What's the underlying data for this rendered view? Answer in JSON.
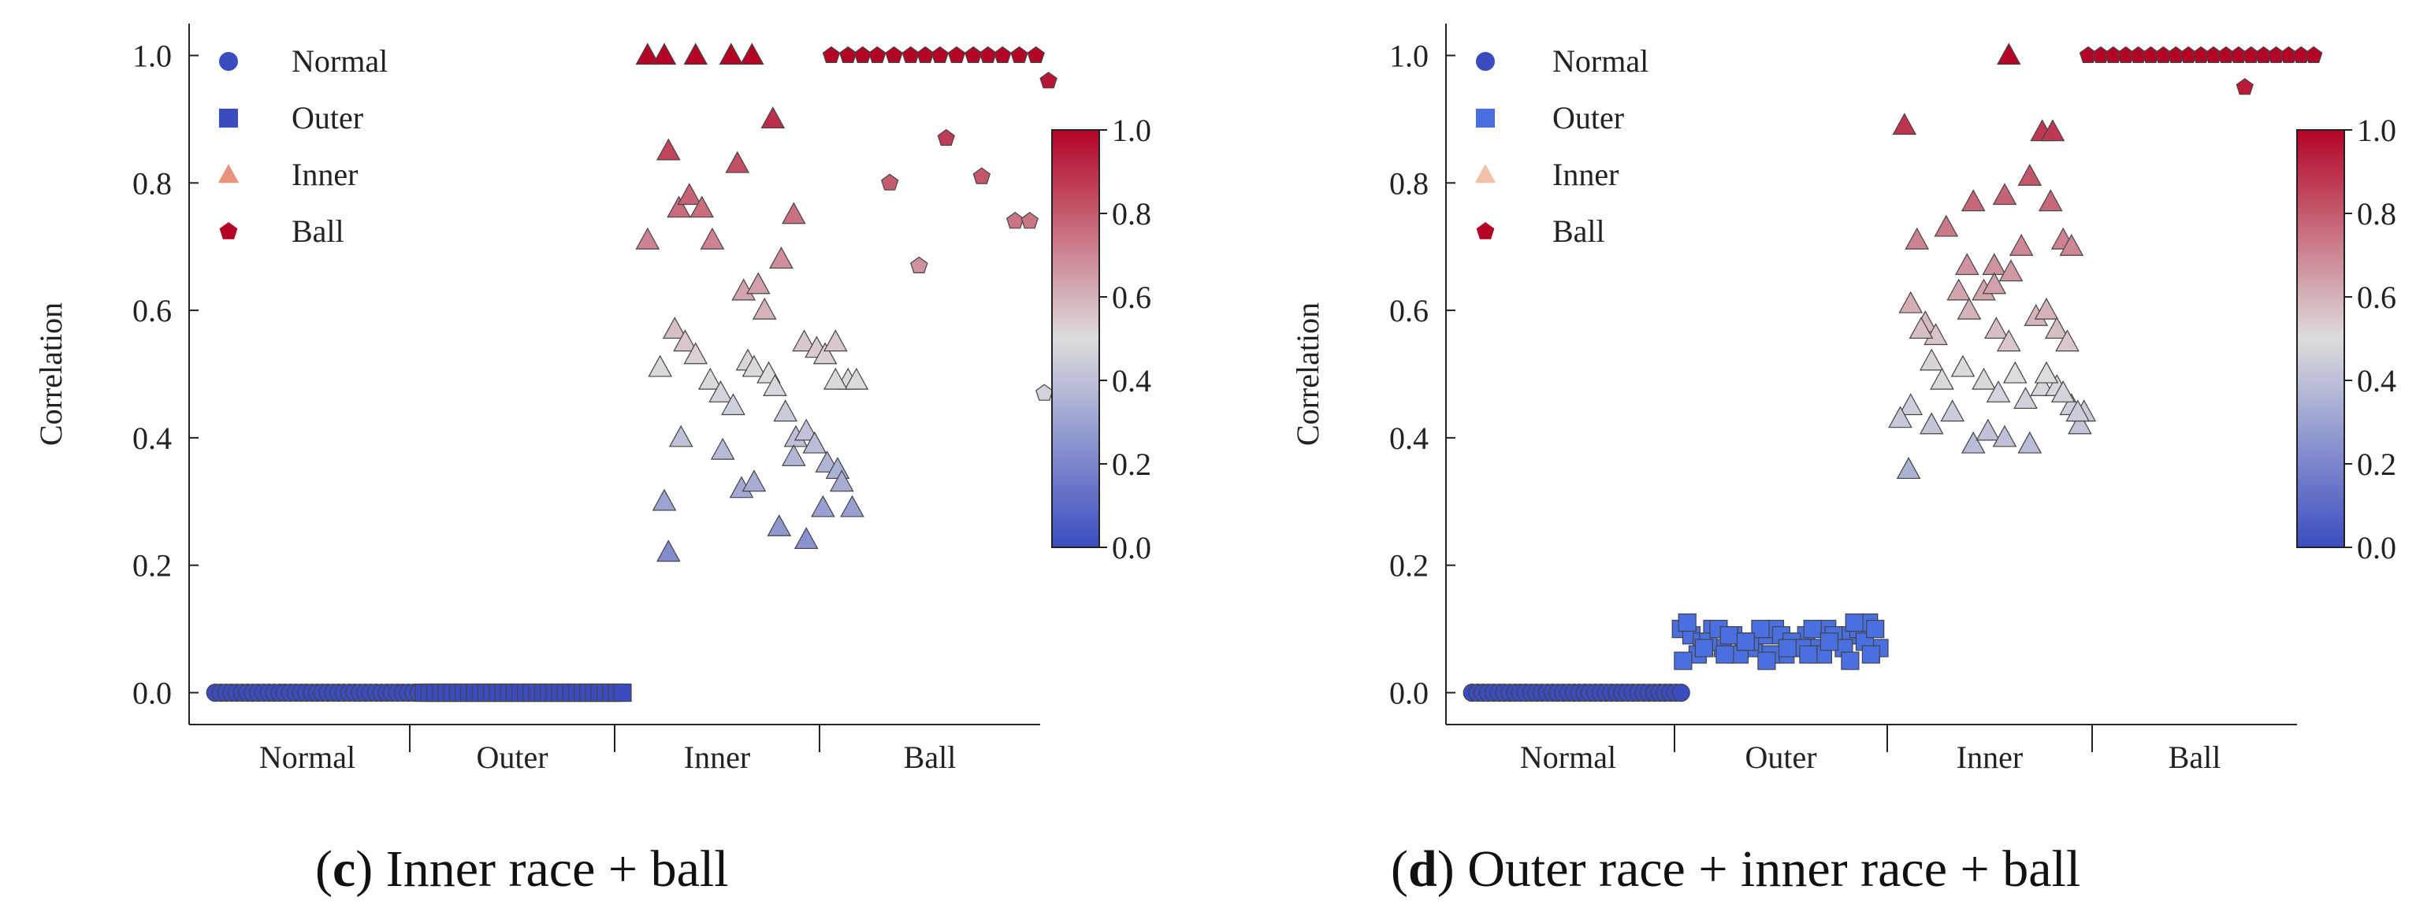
{
  "colorscale": {
    "low": "#3b4cc0",
    "mid": "#dddddd",
    "high": "#b40426"
  },
  "series_colors": {
    "Normal": "#3b4cc0",
    "Outer": "#3b4cc0",
    "Inner": "#e8937a",
    "Ball": "#b40426"
  },
  "chart_data": [
    {
      "panel": "c",
      "type": "scatter",
      "caption": {
        "letter": "c",
        "open": "(",
        "close": ")",
        "rest": " Inner race + ball"
      },
      "ylabel": "Correlation",
      "ylim": [
        -0.05,
        1.05
      ],
      "yticks": [
        0.0,
        0.2,
        0.4,
        0.6,
        0.8,
        1.0
      ],
      "ytick_labels": [
        "0.0",
        "0.2",
        "0.4",
        "0.6",
        "0.8",
        "1.0"
      ],
      "groups": [
        "Normal",
        "Outer",
        "Inner",
        "Ball"
      ],
      "legend": [
        "Normal",
        "Outer",
        "Inner",
        "Ball"
      ],
      "colorbar": {
        "ticks": [
          "0.0",
          "0.2",
          "0.4",
          "0.6",
          "0.8",
          "1.0"
        ]
      },
      "series": [
        {
          "name": "Normal",
          "marker": "circle",
          "x_range": [
            0.05,
            1.05
          ],
          "constant": 0.0,
          "count": 40
        },
        {
          "name": "Outer",
          "marker": "square",
          "x_range": [
            1.05,
            2.0
          ],
          "constant": 0.0,
          "count": 36
        },
        {
          "name": "Inner",
          "marker": "triangle",
          "x": [
            2.12,
            2.2,
            2.35,
            2.52,
            2.62,
            2.22,
            2.27,
            2.32,
            2.38,
            2.43,
            2.55,
            2.58,
            2.65,
            2.68,
            2.72,
            2.76,
            2.82,
            2.87,
            2.93,
            2.97,
            3.02,
            3.08,
            3.12,
            2.18,
            2.25,
            2.3,
            2.35,
            2.42,
            2.47,
            2.53,
            2.6,
            2.63,
            2.7,
            2.73,
            2.78,
            2.83,
            2.88,
            2.92,
            2.98,
            3.03,
            3.05,
            3.1,
            2.2,
            2.28,
            2.48,
            2.57,
            2.63,
            2.75,
            2.82,
            2.88,
            2.96,
            3.02,
            2.22,
            2.12
          ],
          "y": [
            1.0,
            1.0,
            1.0,
            1.0,
            1.0,
            0.85,
            0.76,
            0.78,
            0.76,
            0.71,
            0.83,
            0.63,
            0.64,
            0.6,
            0.9,
            0.68,
            0.75,
            0.55,
            0.54,
            0.53,
            0.55,
            0.49,
            0.49,
            0.51,
            0.57,
            0.55,
            0.53,
            0.49,
            0.47,
            0.45,
            0.52,
            0.51,
            0.5,
            0.48,
            0.44,
            0.4,
            0.41,
            0.39,
            0.36,
            0.35,
            0.33,
            0.29,
            0.3,
            0.4,
            0.38,
            0.32,
            0.33,
            0.26,
            0.37,
            0.24,
            0.29,
            0.49,
            0.22,
            0.71
          ]
        },
        {
          "name": "Ball",
          "marker": "pentagon",
          "x": [
            3.0,
            3.08,
            3.15,
            3.22,
            3.3,
            3.38,
            3.45,
            3.52,
            3.6,
            3.68,
            3.75,
            3.82,
            3.9,
            3.98,
            4.04,
            3.28,
            3.42,
            3.55,
            3.72,
            3.88,
            4.02,
            3.95
          ],
          "y": [
            1.0,
            1.0,
            1.0,
            1.0,
            1.0,
            1.0,
            1.0,
            1.0,
            1.0,
            1.0,
            1.0,
            1.0,
            1.0,
            1.0,
            0.96,
            0.8,
            0.67,
            0.87,
            0.81,
            0.74,
            0.47,
            0.74
          ]
        }
      ]
    },
    {
      "panel": "d",
      "type": "scatter",
      "caption": {
        "letter": "d",
        "open": "(",
        "close": ")",
        "rest": " Outer race + inner race + ball"
      },
      "ylabel": "Correlation",
      "ylim": [
        -0.05,
        1.05
      ],
      "yticks": [
        0.0,
        0.2,
        0.4,
        0.6,
        0.8,
        1.0
      ],
      "ytick_labels": [
        "0.0",
        "0.2",
        "0.4",
        "0.6",
        "0.8",
        "1.0"
      ],
      "groups": [
        "Normal",
        "Outer",
        "Inner",
        "Ball"
      ],
      "legend": [
        "Normal",
        "Outer",
        "Inner",
        "Ball"
      ],
      "colorbar": {
        "ticks": [
          "0.0",
          "0.2",
          "0.4",
          "0.6",
          "0.8",
          "1.0"
        ]
      },
      "series": [
        {
          "name": "Normal",
          "marker": "circle",
          "x_range": [
            0.05,
            1.05
          ],
          "constant": 0.0,
          "count": 40
        },
        {
          "name": "Outer",
          "marker": "square",
          "x": [
            1.05,
            1.1,
            1.15,
            1.2,
            1.25,
            1.3,
            1.35,
            1.4,
            1.45,
            1.5,
            1.55,
            1.6,
            1.65,
            1.7,
            1.75,
            1.8,
            1.85,
            1.9,
            1.95,
            2.0,
            1.08,
            1.13,
            1.18,
            1.23,
            1.28,
            1.33,
            1.38,
            1.43,
            1.48,
            1.53,
            1.58,
            1.63,
            1.68,
            1.73,
            1.78,
            1.83,
            1.88,
            1.93,
            1.98,
            1.06,
            1.16,
            1.26,
            1.36,
            1.46,
            1.56,
            1.66,
            1.76,
            1.86,
            1.96
          ],
          "y": [
            0.1,
            0.09,
            0.08,
            0.1,
            0.07,
            0.09,
            0.08,
            0.07,
            0.09,
            0.1,
            0.06,
            0.08,
            0.09,
            0.07,
            0.1,
            0.08,
            0.09,
            0.1,
            0.11,
            0.07,
            0.11,
            0.06,
            0.08,
            0.1,
            0.09,
            0.06,
            0.08,
            0.1,
            0.06,
            0.09,
            0.08,
            0.07,
            0.1,
            0.06,
            0.09,
            0.07,
            0.11,
            0.08,
            0.1,
            0.05,
            0.07,
            0.06,
            0.08,
            0.05,
            0.07,
            0.06,
            0.08,
            0.05,
            0.06
          ]
        },
        {
          "name": "Inner",
          "marker": "triangle",
          "x": [
            2.62,
            2.78,
            2.83,
            2.12,
            2.18,
            2.32,
            2.45,
            2.55,
            2.6,
            2.72,
            2.82,
            2.88,
            2.92,
            2.15,
            2.22,
            2.27,
            2.38,
            2.43,
            2.5,
            2.55,
            2.63,
            2.68,
            2.75,
            2.8,
            2.85,
            2.9,
            2.98,
            2.25,
            2.3,
            2.4,
            2.5,
            2.57,
            2.65,
            2.7,
            2.78,
            2.85,
            2.92,
            2.96,
            2.15,
            2.25,
            2.35,
            2.45,
            2.52,
            2.6,
            2.72,
            2.8,
            2.88,
            2.95,
            2.1,
            2.2,
            2.42,
            2.56,
            2.62,
            2.14
          ],
          "y": [
            1.0,
            0.88,
            0.88,
            0.89,
            0.71,
            0.73,
            0.77,
            0.67,
            0.78,
            0.81,
            0.77,
            0.71,
            0.7,
            0.61,
            0.58,
            0.56,
            0.63,
            0.6,
            0.63,
            0.64,
            0.66,
            0.7,
            0.59,
            0.6,
            0.57,
            0.55,
            0.44,
            0.52,
            0.49,
            0.51,
            0.49,
            0.47,
            0.5,
            0.46,
            0.48,
            0.48,
            0.45,
            0.42,
            0.45,
            0.42,
            0.44,
            0.39,
            0.41,
            0.4,
            0.39,
            0.5,
            0.47,
            0.44,
            0.43,
            0.57,
            0.67,
            0.57,
            0.55,
            0.35
          ]
        },
        {
          "name": "Ball",
          "marker": "pentagon",
          "x": [
            3.0,
            3.06,
            3.12,
            3.18,
            3.24,
            3.3,
            3.36,
            3.42,
            3.48,
            3.54,
            3.6,
            3.66,
            3.72,
            3.78,
            3.84,
            3.9,
            3.96,
            4.02,
            4.08,
            3.75
          ],
          "y": [
            1.0,
            1.0,
            1.0,
            1.0,
            1.0,
            1.0,
            1.0,
            1.0,
            1.0,
            1.0,
            1.0,
            1.0,
            1.0,
            1.0,
            1.0,
            1.0,
            1.0,
            1.0,
            1.0,
            0.95
          ]
        }
      ]
    }
  ]
}
